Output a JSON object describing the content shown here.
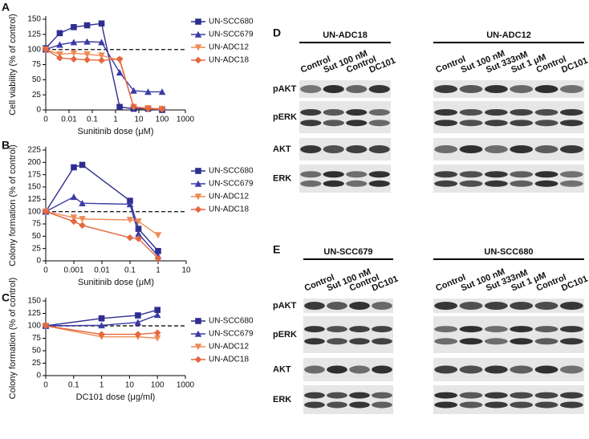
{
  "chart_data": [
    {
      "type": "line",
      "panel_label": "A",
      "y_label": "Cell viability (% of control)",
      "x_label": "Sunitinib dose (μM)",
      "xscale": "log",
      "reference_line": 100,
      "x": [
        0,
        0.004,
        0.016,
        0.06,
        0.25,
        1.5,
        6,
        25,
        100
      ],
      "xlim": [
        0,
        1000
      ],
      "xticks": [
        0,
        0.01,
        0.1,
        1,
        10,
        100,
        1000
      ],
      "ylim": [
        0,
        150
      ],
      "yticks": [
        0,
        25,
        50,
        75,
        100,
        125,
        150
      ],
      "series": [
        {
          "name": "UN-SCC680",
          "color": "#2e2e8f",
          "marker": "square",
          "values": [
            102,
            127,
            137,
            140,
            143,
            5,
            2,
            2,
            0
          ]
        },
        {
          "name": "UN-SCC679",
          "color": "#3b3ba6",
          "marker": "triangle",
          "values": [
            100,
            108,
            112,
            113,
            112,
            62,
            32,
            30,
            30
          ]
        },
        {
          "name": "UN-ADC12",
          "color": "#ee8a55",
          "marker": "triangle-down",
          "values": [
            100,
            92,
            94,
            92,
            90,
            82,
            5,
            3,
            2
          ]
        },
        {
          "name": "UN-ADC18",
          "color": "#e4673f",
          "marker": "diamond",
          "values": [
            100,
            86,
            84,
            83,
            82,
            84,
            5,
            2,
            1
          ]
        }
      ]
    },
    {
      "type": "line",
      "panel_label": "B",
      "y_label": "Colony formation (% of control)",
      "x_label": "Sunitinib dose (μM)",
      "xscale": "log",
      "reference_line": 100,
      "x": [
        0,
        0.001,
        0.002,
        0.1,
        0.2,
        1
      ],
      "xlim": [
        0,
        10
      ],
      "xticks": [
        0,
        0.001,
        0.01,
        0.1,
        1,
        10
      ],
      "ylim": [
        0,
        225
      ],
      "yticks": [
        0,
        25,
        50,
        75,
        100,
        125,
        150,
        175,
        200,
        225
      ],
      "series": [
        {
          "name": "UN-SCC680",
          "color": "#2e2e8f",
          "marker": "square",
          "values": [
            100,
            190,
            195,
            122,
            65,
            20
          ]
        },
        {
          "name": "UN-SCC679",
          "color": "#3b3ba6",
          "marker": "triangle",
          "values": [
            100,
            130,
            117,
            115,
            55,
            10
          ]
        },
        {
          "name": "UN-ADC12",
          "color": "#ee8a55",
          "marker": "triangle-down",
          "values": [
            100,
            88,
            85,
            83,
            80,
            52
          ]
        },
        {
          "name": "UN-ADC18",
          "color": "#e4673f",
          "marker": "diamond",
          "values": [
            100,
            80,
            72,
            47,
            45,
            5
          ]
        }
      ]
    },
    {
      "type": "line",
      "panel_label": "C",
      "y_label": "Colony formation (% of control)",
      "x_label": "DC101 dose (μg/ml)",
      "xscale": "log",
      "reference_line": 100,
      "x": [
        0,
        1,
        20,
        100
      ],
      "xlim": [
        0,
        1000
      ],
      "xticks": [
        0,
        0.1,
        1,
        10,
        100,
        1000
      ],
      "ylim": [
        0,
        150
      ],
      "yticks": [
        0,
        25,
        50,
        75,
        100,
        125,
        150
      ],
      "series": [
        {
          "name": "UN-SCC680",
          "color": "#2e2e8f",
          "marker": "square",
          "values": [
            100,
            115,
            121,
            132
          ]
        },
        {
          "name": "UN-SCC679",
          "color": "#3b3ba6",
          "marker": "triangle",
          "values": [
            100,
            101,
            107,
            122
          ]
        },
        {
          "name": "UN-ADC12",
          "color": "#ee8a55",
          "marker": "triangle-down",
          "values": [
            100,
            78,
            78,
            75
          ]
        },
        {
          "name": "UN-ADC18",
          "color": "#e4673f",
          "marker": "diamond",
          "values": [
            100,
            83,
            83,
            86
          ]
        }
      ]
    }
  ],
  "blots": [
    {
      "panel_label": "D",
      "rows": [
        "pAKT",
        "pERK",
        "AKT",
        "ERK"
      ],
      "groups": [
        {
          "title": "UN-ADC18",
          "lanes": [
            "Control",
            "Sut 100 nM",
            "Control",
            "DC101"
          ]
        },
        {
          "title": "UN-ADC12",
          "lanes": [
            "Control",
            "Sut 100 nM",
            "Sut 333nM",
            "Sut 1 μM",
            "Control",
            "DC101"
          ]
        }
      ]
    },
    {
      "panel_label": "E",
      "rows": [
        "pAKT",
        "pERK",
        "AKT",
        "ERK"
      ],
      "groups": [
        {
          "title": "UN-SCC679",
          "lanes": [
            "Control",
            "Sut 100 nM",
            "Control",
            "DC101"
          ]
        },
        {
          "title": "UN-SCC680",
          "lanes": [
            "Control",
            "Sut 100 nM",
            "Sut 333nM",
            "Sut 1 μM",
            "Control",
            "DC101"
          ]
        }
      ]
    }
  ]
}
